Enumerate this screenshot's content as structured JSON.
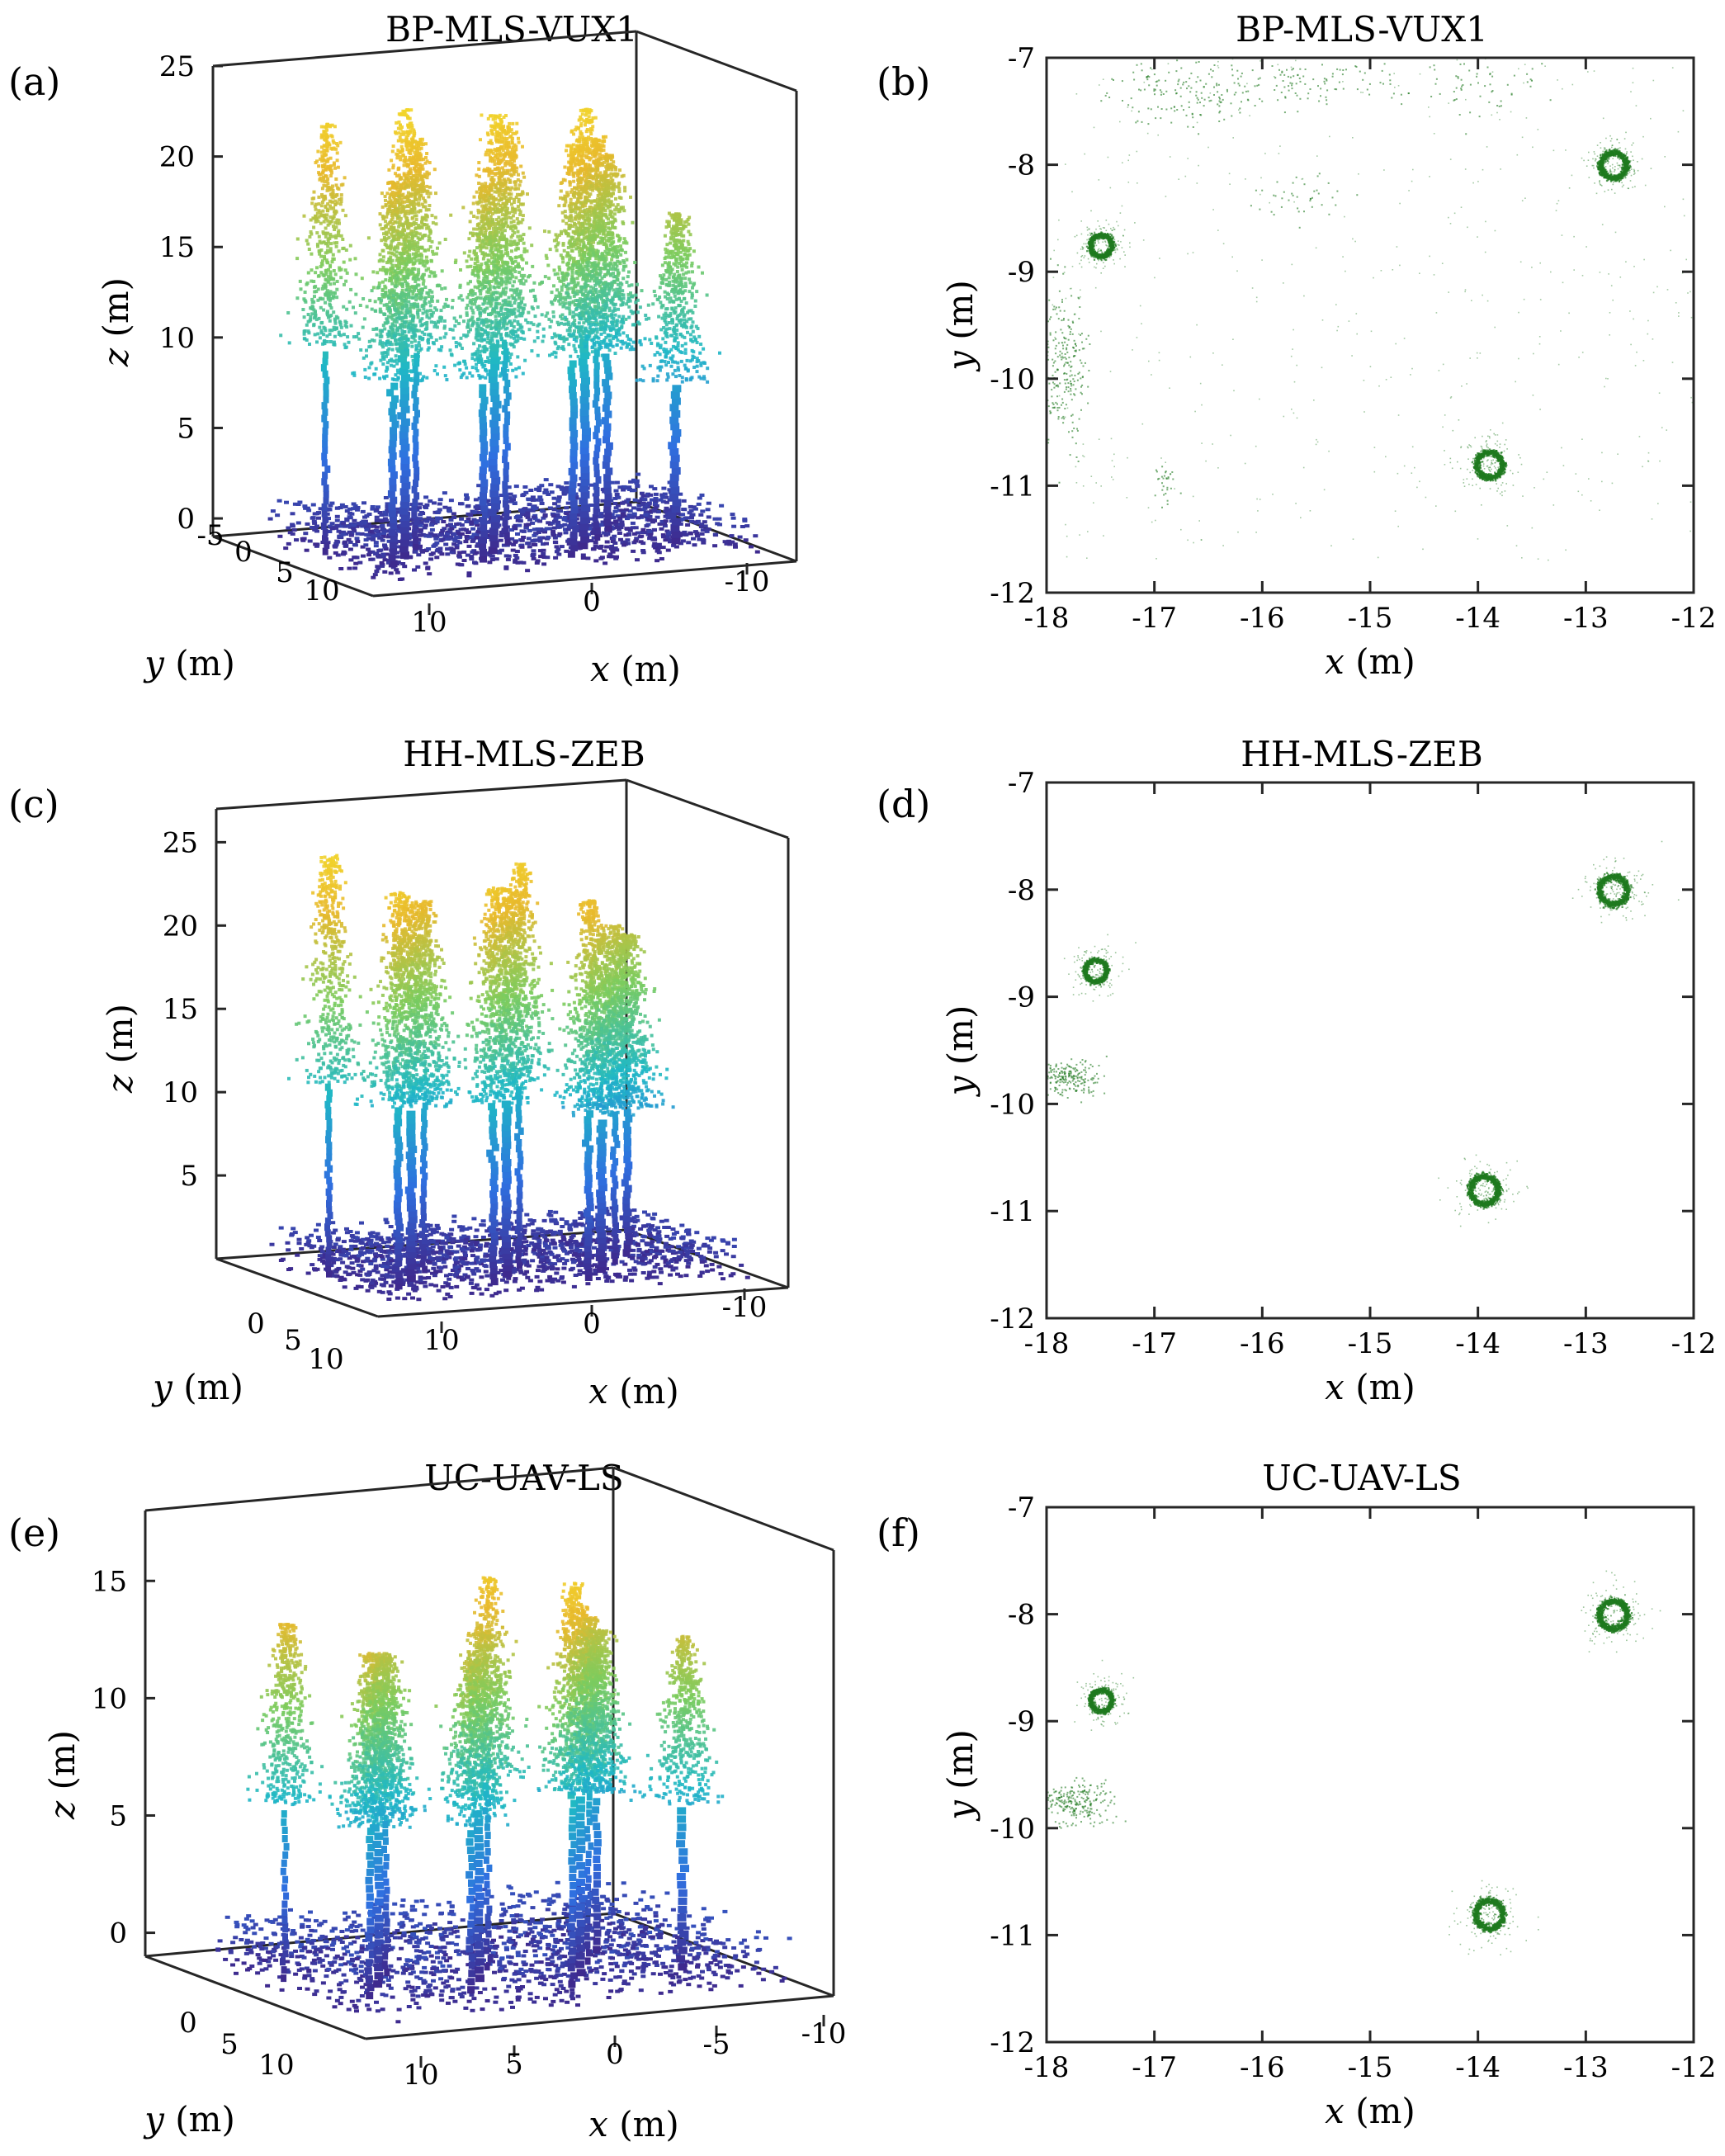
{
  "figure": {
    "chart_data": [
      {
        "id": "a",
        "panel_label": "(a)",
        "type": "scatter",
        "title": "BP-MLS-VUX1",
        "view": "3d",
        "xlabel": "x (m)",
        "ylabel": "y (m)",
        "zlabel": "z (m)",
        "x_ticks": [
          "10",
          "0",
          "-10"
        ],
        "y_ticks": [
          "-5",
          "0",
          "5",
          "10"
        ],
        "z_ticks": [
          "0",
          "5",
          "10",
          "15",
          "20",
          "25"
        ],
        "zlim": [
          -1,
          25
        ],
        "colormap": [
          "#3e2a8e",
          "#2f6fe0",
          "#1fb8c6",
          "#7ccc5e",
          "#e8b92c",
          "#f7e22a"
        ],
        "tree_tops_z": [
          22.5,
          20,
          23.5,
          21.5,
          19.5,
          23,
          22,
          21.5,
          23,
          21,
          19.5,
          17
        ]
      },
      {
        "id": "b",
        "panel_label": "(b)",
        "type": "scatter",
        "title": "BP-MLS-VUX1",
        "xlabel": "x (m)",
        "ylabel": "y (m)",
        "xlim": [
          -18,
          -12
        ],
        "ylim": [
          -12,
          -7
        ],
        "x_ticks": [
          "-18",
          "-17",
          "-16",
          "-15",
          "-14",
          "-13",
          "-12"
        ],
        "y_ticks": [
          "-7",
          "-8",
          "-9",
          "-10",
          "-11",
          "-12"
        ],
        "color": "#1f7a1f",
        "stems": [
          {
            "x": -17.5,
            "y": -8.75,
            "r": 0.1
          },
          {
            "x": -12.75,
            "y": -8.0,
            "r": 0.12
          },
          {
            "x": -13.9,
            "y": -10.8,
            "r": 0.12
          }
        ],
        "clusters": [
          {
            "x": -17.85,
            "y": -9.9,
            "sx": 0.12,
            "sy": 0.35,
            "n": 260
          },
          {
            "x": -16.7,
            "y": -7.3,
            "sx": 0.35,
            "sy": 0.15,
            "n": 170
          },
          {
            "x": -15.5,
            "y": -7.2,
            "sx": 0.35,
            "sy": 0.15,
            "n": 110
          },
          {
            "x": -14.0,
            "y": -7.2,
            "sx": 0.4,
            "sy": 0.18,
            "n": 70
          },
          {
            "x": -15.7,
            "y": -8.3,
            "sx": 0.2,
            "sy": 0.12,
            "n": 40
          },
          {
            "x": -16.9,
            "y": -11.0,
            "sx": 0.06,
            "sy": 0.08,
            "n": 30
          }
        ],
        "sparse_points": 480
      },
      {
        "id": "c",
        "panel_label": "(c)",
        "type": "scatter",
        "title": "HH-MLS-ZEB",
        "view": "3d",
        "xlabel": "x (m)",
        "ylabel": "y (m)",
        "zlabel": "z (m)",
        "x_ticks": [
          "10",
          "0",
          "-10"
        ],
        "y_ticks": [
          "0",
          "5",
          "10"
        ],
        "z_ticks": [
          "5",
          "10",
          "15",
          "20",
          "25"
        ],
        "zlim": [
          0,
          27
        ],
        "colormap": [
          "#3e2a8e",
          "#2f6fe0",
          "#1fb8c6",
          "#7ccc5e",
          "#e8b92c",
          "#f7e22a"
        ],
        "tree_tops_z": [
          25,
          23.5,
          22.5,
          22,
          23.5,
          23,
          24,
          22.5,
          20,
          20,
          19
        ]
      },
      {
        "id": "d",
        "panel_label": "(d)",
        "type": "scatter",
        "title": "HH-MLS-ZEB",
        "xlabel": "x (m)",
        "ylabel": "y (m)",
        "xlim": [
          -18,
          -12
        ],
        "ylim": [
          -12,
          -7
        ],
        "x_ticks": [
          "-18",
          "-17",
          "-16",
          "-15",
          "-14",
          "-13",
          "-12"
        ],
        "y_ticks": [
          "-7",
          "-8",
          "-9",
          "-10",
          "-11",
          "-12"
        ],
        "color": "#1f7a1f",
        "stems": [
          {
            "x": -17.55,
            "y": -8.75,
            "r": 0.1
          },
          {
            "x": -12.75,
            "y": -8.0,
            "r": 0.13
          },
          {
            "x": -13.95,
            "y": -10.8,
            "r": 0.13
          }
        ],
        "clusters": [
          {
            "x": -17.8,
            "y": -9.75,
            "sx": 0.14,
            "sy": 0.08,
            "n": 220
          }
        ],
        "sparse_points": 0
      },
      {
        "id": "e",
        "panel_label": "(e)",
        "type": "scatter",
        "title": "UC-UAV-LS",
        "view": "3d",
        "xlabel": "x (m)",
        "ylabel": "y (m)",
        "zlabel": "z (m)",
        "x_ticks": [
          "10",
          "5",
          "0",
          "-5",
          "-10"
        ],
        "y_ticks": [
          "0",
          "5",
          "10"
        ],
        "z_ticks": [
          "0",
          "5",
          "10",
          "15"
        ],
        "zlim": [
          -1,
          18
        ],
        "colormap": [
          "#3e2a8e",
          "#2f6fe0",
          "#1fb8c6",
          "#7ccc5e",
          "#e8b92c",
          "#f7e22a"
        ],
        "tree_tops_z": [
          14,
          13.5,
          13,
          12.5,
          13,
          14,
          15.5,
          16,
          14.5,
          13.5,
          12.5,
          13
        ]
      },
      {
        "id": "f",
        "panel_label": "(f)",
        "type": "scatter",
        "title": "UC-UAV-LS",
        "xlabel": "x (m)",
        "ylabel": "y (m)",
        "xlim": [
          -18,
          -12
        ],
        "ylim": [
          -12,
          -7
        ],
        "x_ticks": [
          "-18",
          "-17",
          "-16",
          "-15",
          "-14",
          "-13",
          "-12"
        ],
        "y_ticks": [
          "-7",
          "-8",
          "-9",
          "-10",
          "-11",
          "-12"
        ],
        "color": "#1f7a1f",
        "stems": [
          {
            "x": -17.5,
            "y": -8.8,
            "r": 0.1
          },
          {
            "x": -12.75,
            "y": -8.0,
            "r": 0.13
          },
          {
            "x": -13.9,
            "y": -10.8,
            "r": 0.13
          }
        ],
        "clusters": [
          {
            "x": -17.75,
            "y": -9.75,
            "sx": 0.18,
            "sy": 0.1,
            "n": 260
          }
        ],
        "sparse_points": 0
      }
    ]
  }
}
